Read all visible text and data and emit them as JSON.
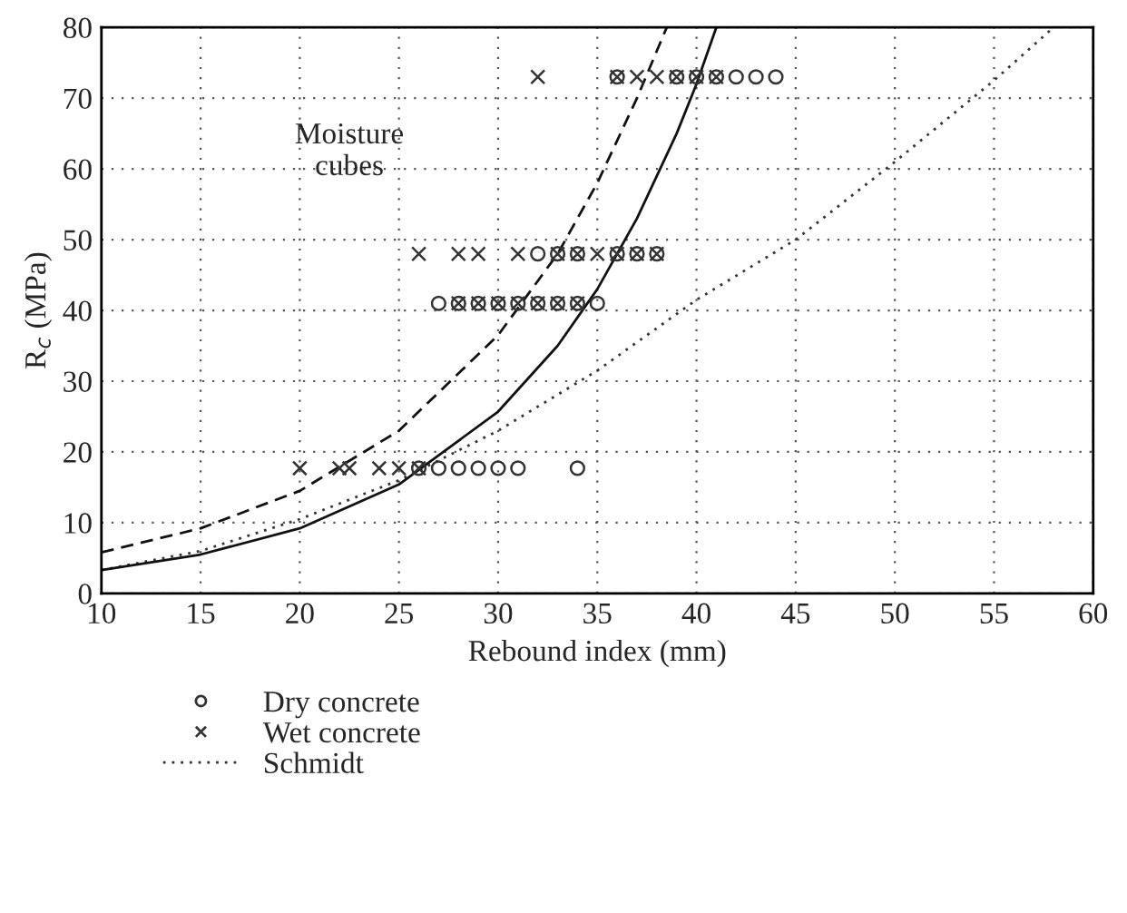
{
  "chart_data": {
    "type": "scatter",
    "xlabel": "Rebound index (mm)",
    "ylabel": "R$_{c}$ (MPa)",
    "xlim": [
      10,
      60
    ],
    "ylim": [
      0,
      80
    ],
    "xticks": [
      10,
      15,
      20,
      25,
      30,
      35,
      40,
      45,
      50,
      55,
      60
    ],
    "yticks": [
      0,
      10,
      20,
      30,
      40,
      50,
      60,
      70,
      80
    ],
    "grid": true,
    "legend": "bottom",
    "annotations": [
      "Moisture\ncubes"
    ],
    "series": [
      {
        "name": "Dry concrete",
        "marker": "circle",
        "color": "#333333",
        "x": [
          26,
          27,
          28,
          29,
          30,
          31,
          34,
          27,
          28,
          29,
          30,
          31,
          32,
          33,
          34,
          35,
          32,
          33,
          34,
          36,
          37,
          38,
          36,
          39,
          40,
          41,
          42,
          43,
          44
        ],
        "values": [
          17.7,
          17.7,
          17.7,
          17.7,
          17.7,
          17.7,
          17.7,
          41,
          41,
          41,
          41,
          41,
          41,
          41,
          41,
          41,
          48,
          48,
          48,
          48,
          48,
          48,
          73,
          73,
          73,
          73,
          73,
          73,
          73
        ]
      },
      {
        "name": "Wet concrete",
        "marker": "cross",
        "color": "#333333",
        "x": [
          20,
          22,
          22.5,
          24,
          25,
          26,
          28,
          29,
          30,
          31,
          32,
          33,
          34,
          26,
          28,
          29,
          31,
          33,
          34,
          35,
          36,
          37,
          38,
          32,
          36,
          37,
          38,
          39,
          40,
          41
        ],
        "values": [
          17.7,
          17.7,
          17.7,
          17.7,
          17.7,
          17.7,
          41,
          41,
          41,
          41,
          41,
          41,
          41,
          48,
          48,
          48,
          48,
          48,
          48,
          48,
          48,
          48,
          48,
          73,
          73,
          73,
          73,
          73,
          73,
          73
        ]
      },
      {
        "name": "Schmidt",
        "type": "line",
        "line_style": "dotted",
        "color": "#333333",
        "x": [
          10,
          15,
          20,
          25,
          30,
          35,
          40,
          45,
          50,
          55,
          58
        ],
        "values": [
          3.3,
          6,
          10.5,
          16,
          23,
          31.5,
          41.5,
          50,
          61,
          72.5,
          80
        ]
      },
      {
        "type": "line",
        "line_style": "solid",
        "color": "#111111",
        "x": [
          10,
          15,
          20,
          25,
          30,
          33,
          35,
          37,
          39,
          40,
          41
        ],
        "values": [
          3.3,
          5.5,
          9.2,
          15.4,
          25.7,
          35,
          43,
          53,
          65,
          72,
          80
        ]
      },
      {
        "type": "line",
        "line_style": "dashed",
        "color": "#111111",
        "x": [
          10,
          15,
          20,
          25,
          30,
          33,
          35,
          37,
          38.5
        ],
        "values": [
          5.8,
          9.2,
          14.5,
          23,
          36.5,
          48,
          58,
          70,
          80
        ]
      }
    ]
  }
}
